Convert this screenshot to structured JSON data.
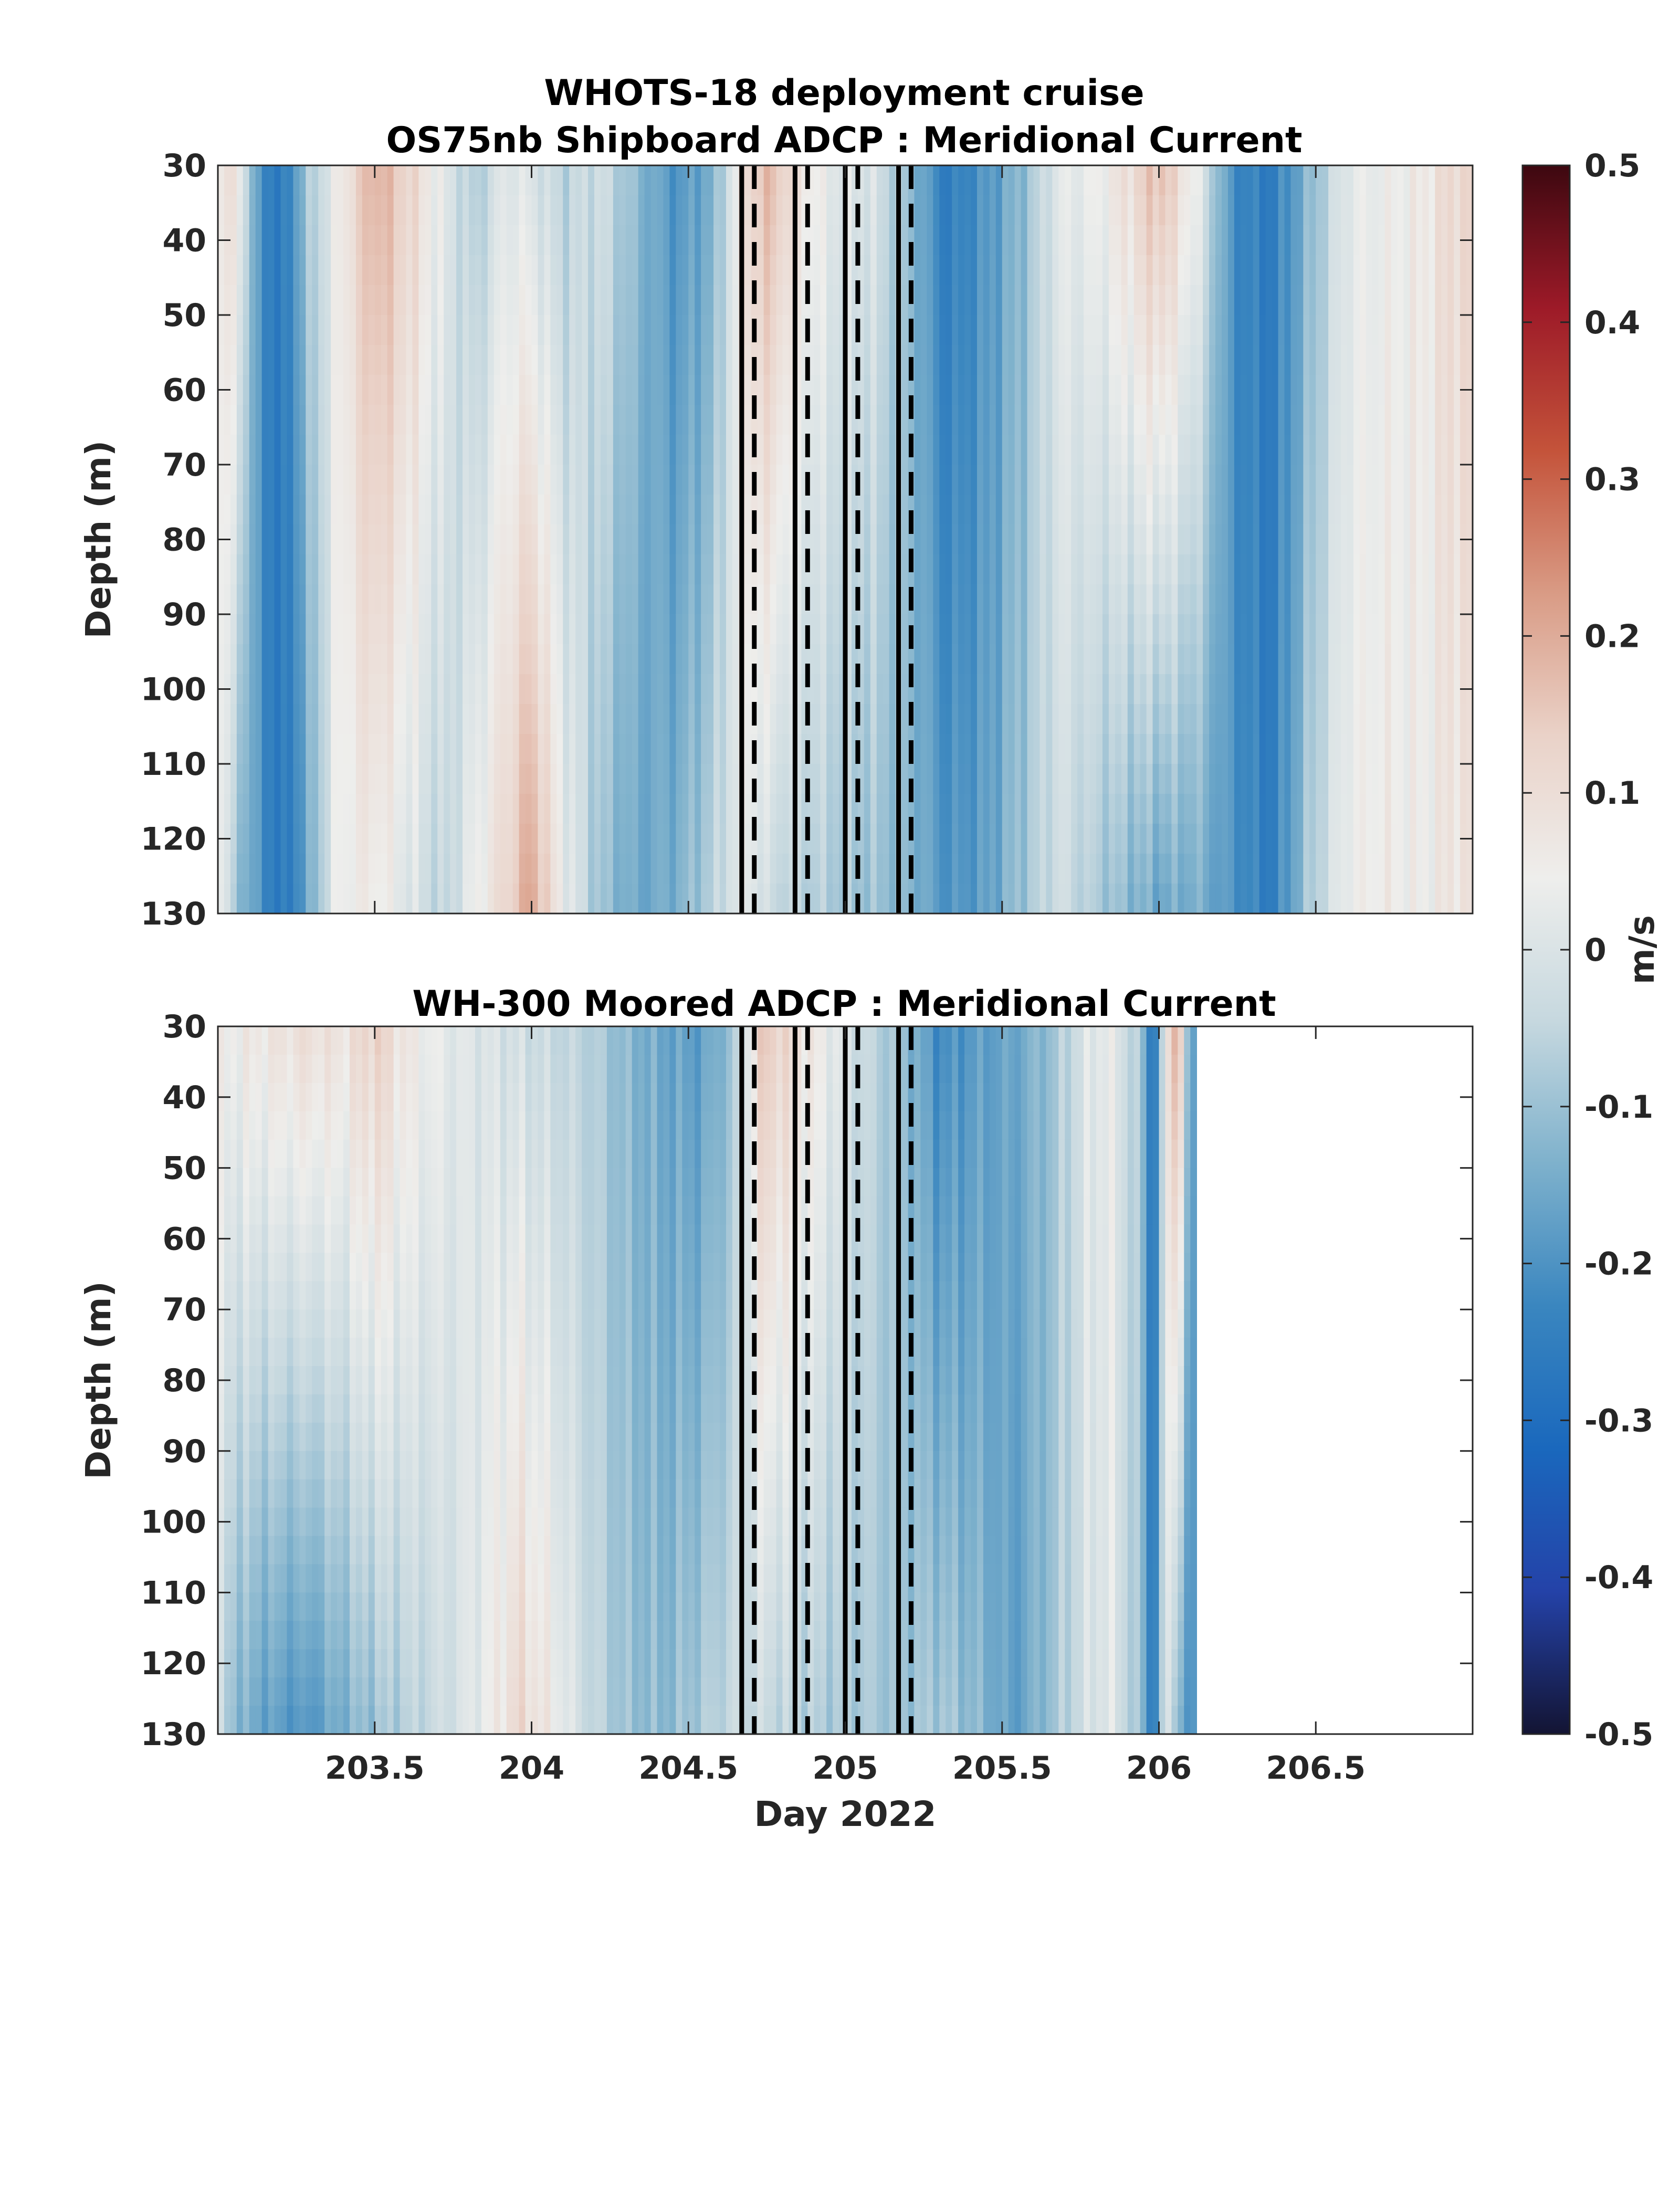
{
  "figure": {
    "title_line1": "WHOTS-18 deployment cruise",
    "title_line2": "OS75nb Shipboard ADCP : Meridional Current",
    "xlabel": "Day 2022",
    "colormap": [
      "#131433",
      "#2442a8",
      "#1a68bd",
      "#3a86bf",
      "#7eb1cc",
      "#c6d8df",
      "#eeeeec",
      "#ead2c8",
      "#d99b85",
      "#c4533a",
      "#9d1a28",
      "#3d0810"
    ]
  },
  "chart_data": [
    {
      "type": "heatmap",
      "title": "OS75nb Shipboard ADCP : Meridional Current",
      "xlabel": "",
      "ylabel": "Depth (m)",
      "xlim": [
        203.0,
        207.0
      ],
      "ylim": [
        30,
        130
      ],
      "y_reversed": true,
      "yticks": [
        30,
        40,
        50,
        60,
        70,
        80,
        90,
        100,
        110,
        120,
        130
      ],
      "xticks": [
        203.5,
        204,
        204.5,
        205,
        205.5,
        206,
        206.5
      ],
      "x_tick_labels_shown": false,
      "clim": [
        -0.5,
        0.5
      ],
      "data_end_day": 207.0,
      "solid_lines": [
        204.67,
        204.84,
        205.0,
        205.17
      ],
      "dashed_lines": [
        204.71,
        204.88,
        205.04,
        205.21
      ],
      "column_profiles": [
        {
          "day": 203.0,
          "surface": 0.06,
          "bottom": 0.05
        },
        {
          "day": 203.06,
          "surface": 0.1,
          "bottom": -0.1
        },
        {
          "day": 203.12,
          "surface": -0.18,
          "bottom": -0.18
        },
        {
          "day": 203.2,
          "surface": -0.28,
          "bottom": -0.28
        },
        {
          "day": 203.28,
          "surface": -0.1,
          "bottom": -0.18
        },
        {
          "day": 203.38,
          "surface": 0.05,
          "bottom": 0.04
        },
        {
          "day": 203.5,
          "surface": 0.2,
          "bottom": 0.06
        },
        {
          "day": 203.62,
          "surface": 0.12,
          "bottom": 0.0
        },
        {
          "day": 203.72,
          "surface": 0.02,
          "bottom": -0.06
        },
        {
          "day": 203.82,
          "surface": -0.08,
          "bottom": 0.04
        },
        {
          "day": 203.92,
          "surface": 0.02,
          "bottom": 0.12
        },
        {
          "day": 204.0,
          "surface": 0.0,
          "bottom": 0.22
        },
        {
          "day": 204.1,
          "surface": -0.06,
          "bottom": 0.04
        },
        {
          "day": 204.22,
          "surface": -0.02,
          "bottom": -0.1
        },
        {
          "day": 204.34,
          "surface": -0.12,
          "bottom": -0.16
        },
        {
          "day": 204.46,
          "surface": -0.2,
          "bottom": -0.14
        },
        {
          "day": 204.58,
          "surface": -0.14,
          "bottom": -0.06
        },
        {
          "day": 204.68,
          "surface": 0.12,
          "bottom": 0.04
        },
        {
          "day": 204.76,
          "surface": 0.18,
          "bottom": -0.04
        },
        {
          "day": 204.86,
          "surface": 0.08,
          "bottom": -0.06
        },
        {
          "day": 204.96,
          "surface": 0.02,
          "bottom": -0.08
        },
        {
          "day": 205.08,
          "surface": 0.0,
          "bottom": -0.1
        },
        {
          "day": 205.2,
          "surface": -0.1,
          "bottom": -0.12
        },
        {
          "day": 205.32,
          "surface": -0.26,
          "bottom": -0.2
        },
        {
          "day": 205.44,
          "surface": -0.2,
          "bottom": -0.18
        },
        {
          "day": 205.56,
          "surface": -0.12,
          "bottom": -0.1
        },
        {
          "day": 205.68,
          "surface": 0.02,
          "bottom": -0.02
        },
        {
          "day": 205.8,
          "surface": 0.04,
          "bottom": -0.08
        },
        {
          "day": 205.9,
          "surface": 0.1,
          "bottom": -0.12
        },
        {
          "day": 206.0,
          "surface": 0.18,
          "bottom": -0.16
        },
        {
          "day": 206.12,
          "surface": 0.04,
          "bottom": -0.14
        },
        {
          "day": 206.24,
          "surface": -0.22,
          "bottom": -0.2
        },
        {
          "day": 206.36,
          "surface": -0.26,
          "bottom": -0.26
        },
        {
          "day": 206.48,
          "surface": -0.12,
          "bottom": -0.08
        },
        {
          "day": 206.6,
          "surface": 0.02,
          "bottom": 0.04
        },
        {
          "day": 206.72,
          "surface": 0.04,
          "bottom": 0.06
        },
        {
          "day": 206.84,
          "surface": 0.06,
          "bottom": 0.04
        },
        {
          "day": 206.94,
          "surface": 0.12,
          "bottom": 0.08
        }
      ]
    },
    {
      "type": "heatmap",
      "title": "WH-300 Moored ADCP : Meridional Current",
      "xlabel": "Day 2022",
      "ylabel": "Depth (m)",
      "xlim": [
        203.0,
        207.0
      ],
      "ylim": [
        30,
        130
      ],
      "y_reversed": true,
      "yticks": [
        30,
        40,
        50,
        60,
        70,
        80,
        90,
        100,
        110,
        120,
        130
      ],
      "xticks": [
        203.5,
        204,
        204.5,
        205,
        205.5,
        206,
        206.5
      ],
      "x_tick_labels_shown": true,
      "clim": [
        -0.5,
        0.5
      ],
      "data_end_day": 206.12,
      "solid_lines": [
        204.67,
        204.84,
        205.0,
        205.17
      ],
      "dashed_lines": [
        204.71,
        204.88,
        205.04,
        205.21
      ],
      "column_profiles": [
        {
          "day": 203.0,
          "surface": 0.04,
          "bottom": -0.04
        },
        {
          "day": 203.08,
          "surface": 0.06,
          "bottom": -0.14
        },
        {
          "day": 203.18,
          "surface": 0.08,
          "bottom": -0.18
        },
        {
          "day": 203.28,
          "surface": 0.1,
          "bottom": -0.2
        },
        {
          "day": 203.4,
          "surface": 0.08,
          "bottom": -0.14
        },
        {
          "day": 203.5,
          "surface": 0.14,
          "bottom": -0.1
        },
        {
          "day": 203.62,
          "surface": 0.06,
          "bottom": -0.06
        },
        {
          "day": 203.74,
          "surface": 0.02,
          "bottom": -0.02
        },
        {
          "day": 203.86,
          "surface": 0.0,
          "bottom": 0.04
        },
        {
          "day": 203.96,
          "surface": -0.02,
          "bottom": 0.12
        },
        {
          "day": 204.06,
          "surface": -0.04,
          "bottom": 0.06
        },
        {
          "day": 204.18,
          "surface": -0.06,
          "bottom": -0.04
        },
        {
          "day": 204.3,
          "surface": -0.12,
          "bottom": -0.1
        },
        {
          "day": 204.42,
          "surface": -0.16,
          "bottom": -0.12
        },
        {
          "day": 204.54,
          "surface": -0.18,
          "bottom": -0.08
        },
        {
          "day": 204.64,
          "surface": -0.1,
          "bottom": -0.04
        },
        {
          "day": 204.74,
          "surface": 0.16,
          "bottom": -0.04
        },
        {
          "day": 204.84,
          "surface": 0.1,
          "bottom": -0.06
        },
        {
          "day": 204.94,
          "surface": 0.04,
          "bottom": -0.08
        },
        {
          "day": 205.06,
          "surface": -0.04,
          "bottom": -0.08
        },
        {
          "day": 205.18,
          "surface": -0.1,
          "bottom": -0.1
        },
        {
          "day": 205.3,
          "surface": -0.22,
          "bottom": -0.08
        },
        {
          "day": 205.42,
          "surface": -0.18,
          "bottom": -0.12
        },
        {
          "day": 205.54,
          "surface": -0.16,
          "bottom": -0.18
        },
        {
          "day": 205.66,
          "surface": -0.1,
          "bottom": -0.1
        },
        {
          "day": 205.76,
          "surface": 0.0,
          "bottom": -0.02
        },
        {
          "day": 205.84,
          "surface": 0.04,
          "bottom": 0.02
        },
        {
          "day": 205.94,
          "surface": -0.08,
          "bottom": -0.1
        },
        {
          "day": 205.98,
          "surface": -0.3,
          "bottom": -0.28
        },
        {
          "day": 206.02,
          "surface": 0.02,
          "bottom": 0.0
        },
        {
          "day": 206.06,
          "surface": 0.26,
          "bottom": -0.1
        },
        {
          "day": 206.1,
          "surface": -0.2,
          "bottom": -0.22
        }
      ]
    }
  ],
  "colorbar": {
    "label": "m/s",
    "range": [
      -0.5,
      0.5
    ],
    "ticks": [
      "0.5",
      "0.4",
      "0.3",
      "0.2",
      "0.1",
      "0",
      "-0.1",
      "-0.2",
      "-0.3",
      "-0.4",
      "-0.5"
    ]
  }
}
